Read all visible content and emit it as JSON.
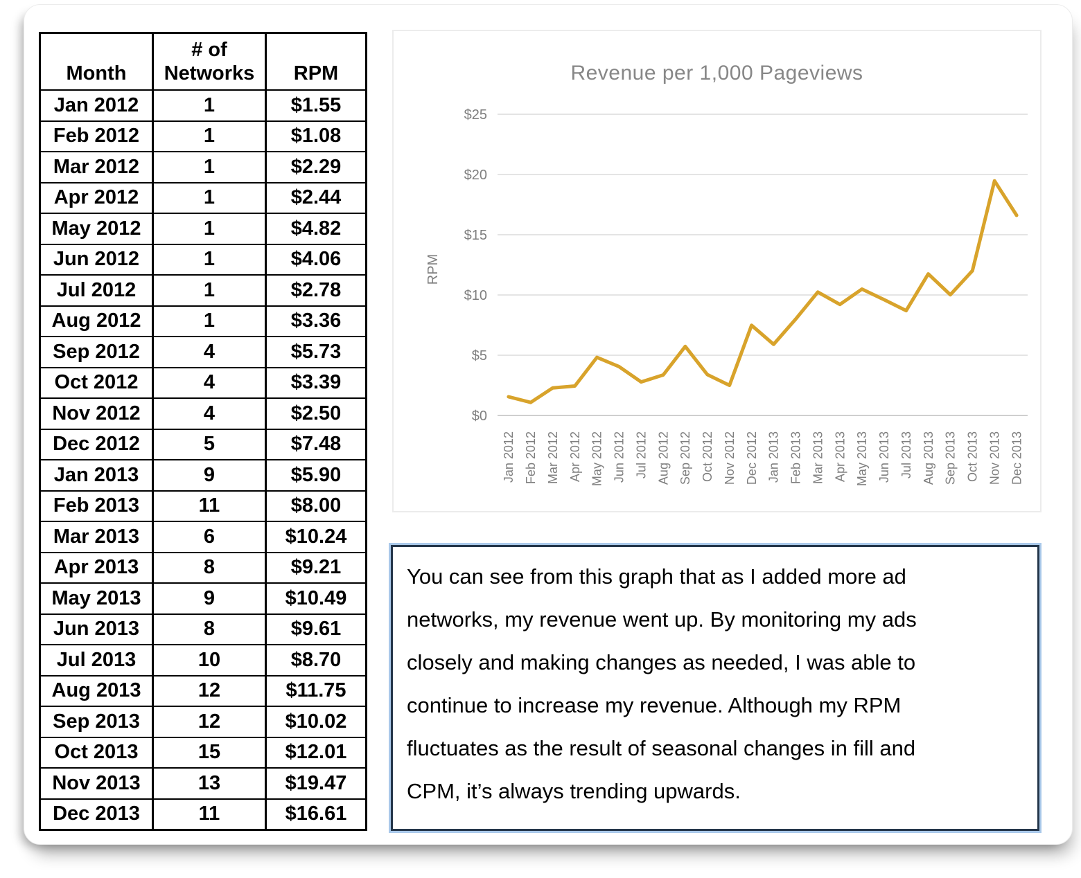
{
  "table": {
    "headers": {
      "month": "Month",
      "networks": "# of Networks",
      "rpm": "RPM"
    },
    "rows": [
      [
        "Jan 2012",
        "1",
        "$1.55"
      ],
      [
        "Feb 2012",
        "1",
        "$1.08"
      ],
      [
        "Mar 2012",
        "1",
        "$2.29"
      ],
      [
        "Apr 2012",
        "1",
        "$2.44"
      ],
      [
        "May 2012",
        "1",
        "$4.82"
      ],
      [
        "Jun 2012",
        "1",
        "$4.06"
      ],
      [
        "Jul 2012",
        "1",
        "$2.78"
      ],
      [
        "Aug 2012",
        "1",
        "$3.36"
      ],
      [
        "Sep 2012",
        "4",
        "$5.73"
      ],
      [
        "Oct 2012",
        "4",
        "$3.39"
      ],
      [
        "Nov 2012",
        "4",
        "$2.50"
      ],
      [
        "Dec 2012",
        "5",
        "$7.48"
      ],
      [
        "Jan 2013",
        "9",
        "$5.90"
      ],
      [
        "Feb 2013",
        "11",
        "$8.00"
      ],
      [
        "Mar 2013",
        "6",
        "$10.24"
      ],
      [
        "Apr 2013",
        "8",
        "$9.21"
      ],
      [
        "May 2013",
        "9",
        "$10.49"
      ],
      [
        "Jun 2013",
        "8",
        "$9.61"
      ],
      [
        "Jul 2013",
        "10",
        "$8.70"
      ],
      [
        "Aug 2013",
        "12",
        "$11.75"
      ],
      [
        "Sep 2013",
        "12",
        "$10.02"
      ],
      [
        "Oct 2013",
        "15",
        "$12.01"
      ],
      [
        "Nov 2013",
        "13",
        "$19.47"
      ],
      [
        "Dec 2013",
        "11",
        "$16.61"
      ]
    ]
  },
  "chart_data": {
    "type": "line",
    "title": "Revenue per 1,000 Pageviews",
    "ylabel": "RPM",
    "xlabel": "",
    "categories": [
      "Jan 2012",
      "Feb 2012",
      "Mar 2012",
      "Apr 2012",
      "May 2012",
      "Jun 2012",
      "Jul 2012",
      "Aug 2012",
      "Sep 2012",
      "Oct 2012",
      "Nov 2012",
      "Dec 2012",
      "Jan 2013",
      "Feb 2013",
      "Mar 2013",
      "Apr 2013",
      "May 2013",
      "Jun 2013",
      "Jul 2013",
      "Aug 2013",
      "Sep 2013",
      "Oct 2013",
      "Nov 2013",
      "Dec 2013"
    ],
    "series": [
      {
        "name": "RPM",
        "values": [
          1.55,
          1.08,
          2.29,
          2.44,
          4.82,
          4.06,
          2.78,
          3.36,
          5.73,
          3.39,
          2.5,
          7.48,
          5.9,
          8.0,
          10.24,
          9.21,
          10.49,
          9.61,
          8.7,
          11.75,
          10.02,
          12.01,
          19.47,
          16.61
        ]
      }
    ],
    "ylim": [
      0,
      25
    ],
    "ytick_step": 5,
    "ytick_labels": [
      "$0",
      "$5",
      "$10",
      "$15",
      "$20",
      "$25"
    ],
    "grid": true,
    "legend": "none",
    "line_color": "#D8A32B",
    "axis_text_color": "#7f7f7f",
    "gridline_color": "#e4e4e4",
    "baseline_color": "#cfcfcf"
  },
  "textbox": {
    "lines": [
      "You can see from this graph that as I added more ad",
      "networks, my revenue went up. By monitoring my ads",
      "closely and making changes as needed, I was able to",
      "continue to increase my revenue. Although my RPM",
      "fluctuates as the result of seasonal changes in fill and",
      "CPM, it’s always trending upwards."
    ]
  }
}
